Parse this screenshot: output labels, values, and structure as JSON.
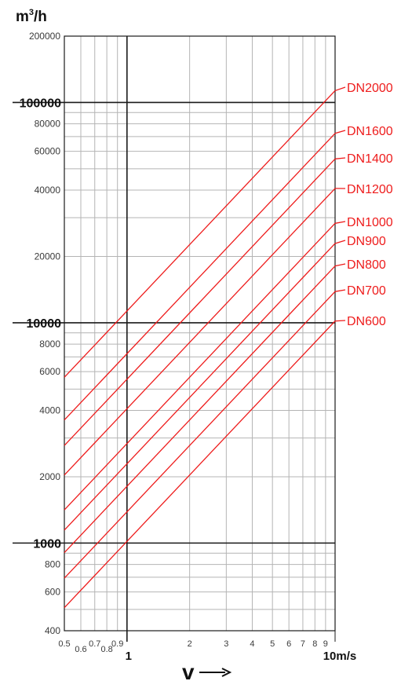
{
  "chart_data": {
    "type": "line",
    "x_scale": "log",
    "y_scale": "log",
    "xlim": [
      0.5,
      10
    ],
    "ylim": [
      400,
      200000
    ],
    "grid": true,
    "ylabel_unit": {
      "base": "m",
      "exp": "3",
      "tail": "/h"
    },
    "xlabel": "v",
    "y_ticks_minor": [
      {
        "v": 200000,
        "label": "200000"
      },
      {
        "v": 80000,
        "label": "80000"
      },
      {
        "v": 60000,
        "label": "60000"
      },
      {
        "v": 40000,
        "label": "40000"
      },
      {
        "v": 20000,
        "label": "20000"
      },
      {
        "v": 8000,
        "label": "8000"
      },
      {
        "v": 6000,
        "label": "6000"
      },
      {
        "v": 4000,
        "label": "4000"
      },
      {
        "v": 2000,
        "label": "2000"
      },
      {
        "v": 800,
        "label": "800"
      },
      {
        "v": 600,
        "label": "600"
      },
      {
        "v": 400,
        "label": "400"
      }
    ],
    "y_ticks_major": [
      {
        "v": 100000,
        "label": "100000"
      },
      {
        "v": 10000,
        "label": "10000"
      },
      {
        "v": 1000,
        "label": "1000"
      }
    ],
    "x_ticks_minor": [
      {
        "v": 0.5,
        "label": "0.5",
        "low": false
      },
      {
        "v": 0.6,
        "label": "0.6",
        "low": true
      },
      {
        "v": 0.7,
        "label": "0.7",
        "low": false
      },
      {
        "v": 0.8,
        "label": "0.8",
        "low": true
      },
      {
        "v": 0.9,
        "label": "0.9",
        "low": false
      },
      {
        "v": 2,
        "label": "2",
        "low": false
      },
      {
        "v": 3,
        "label": "3",
        "low": false
      },
      {
        "v": 4,
        "label": "4",
        "low": false
      },
      {
        "v": 5,
        "label": "5",
        "low": false
      },
      {
        "v": 6,
        "label": "6",
        "low": false
      },
      {
        "v": 7,
        "label": "7",
        "low": false
      },
      {
        "v": 8,
        "label": "8",
        "low": false
      },
      {
        "v": 9,
        "label": "9",
        "low": false
      }
    ],
    "x_ticks_major": [
      {
        "v": 1,
        "label": "1"
      },
      {
        "v": 10,
        "label": "10m/s"
      }
    ],
    "series": [
      {
        "name": "DN2000",
        "points": [
          [
            0.5,
            5655
          ],
          [
            10,
            113097
          ]
        ]
      },
      {
        "name": "DN1600",
        "points": [
          [
            0.5,
            3619
          ],
          [
            10,
            72382
          ]
        ]
      },
      {
        "name": "DN1400",
        "points": [
          [
            0.5,
            2771
          ],
          [
            10,
            55418
          ]
        ]
      },
      {
        "name": "DN1200",
        "points": [
          [
            0.5,
            2036
          ],
          [
            10,
            40715
          ]
        ]
      },
      {
        "name": "DN1000",
        "points": [
          [
            0.5,
            1414
          ],
          [
            10,
            28274
          ]
        ]
      },
      {
        "name": "DN900",
        "points": [
          [
            0.5,
            1145
          ],
          [
            10,
            22902
          ]
        ]
      },
      {
        "name": "DN800",
        "points": [
          [
            0.5,
            905
          ],
          [
            10,
            18096
          ]
        ]
      },
      {
        "name": "DN700",
        "points": [
          [
            0.5,
            693
          ],
          [
            10,
            13854
          ]
        ]
      },
      {
        "name": "DN600",
        "points": [
          [
            0.5,
            509
          ],
          [
            10,
            10179
          ]
        ]
      }
    ],
    "colors": {
      "series": "#ee1c1c",
      "grid": "#b4b4b4",
      "major_grid": "#1a1a1a",
      "text": "#3a3a3a"
    }
  }
}
